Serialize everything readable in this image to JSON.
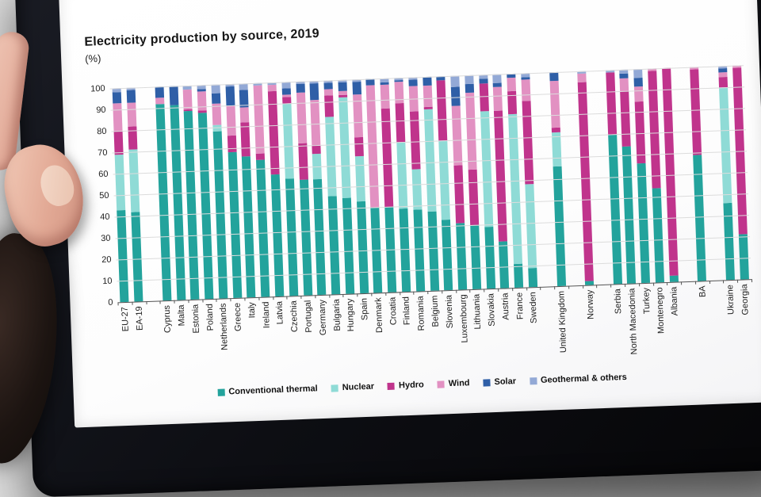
{
  "chart_data": {
    "type": "bar",
    "stacked": true,
    "title": "Electricity production by source, 2019",
    "unit_label": "(%)",
    "xlabel": "",
    "ylabel": "",
    "ylim": [
      0,
      100
    ],
    "ytick_step": 10,
    "grid": true,
    "legend_position": "bottom",
    "series_meta": [
      {
        "name": "Conventional thermal",
        "color": "#23a39c"
      },
      {
        "name": "Nuclear",
        "color": "#8fdbd6"
      },
      {
        "name": "Hydro",
        "color": "#c0348c"
      },
      {
        "name": "Wind",
        "color": "#e291c2"
      },
      {
        "name": "Solar",
        "color": "#2f5fa7"
      },
      {
        "name": "Geothermal & others",
        "color": "#93a9d6"
      }
    ],
    "slots": [
      {
        "label": "EU-27",
        "values": [
          43,
          26,
          11,
          13,
          5,
          2
        ]
      },
      {
        "label": "EA-19",
        "values": [
          42,
          29,
          11,
          11,
          6,
          1
        ]
      },
      null,
      {
        "label": "Cyprus",
        "values": [
          92,
          0,
          0,
          3,
          5,
          0
        ]
      },
      {
        "label": "Malta",
        "values": [
          91,
          0,
          0,
          0,
          9,
          0
        ]
      },
      {
        "label": "Estonia",
        "values": [
          88,
          0,
          1,
          9,
          0,
          2
        ]
      },
      {
        "label": "Poland",
        "values": [
          87,
          0,
          1,
          9,
          1,
          2
        ]
      },
      {
        "label": "Netherlands",
        "values": [
          78,
          3,
          0,
          10,
          5,
          4
        ]
      },
      {
        "label": "Greece",
        "values": [
          68,
          0,
          8,
          14,
          9,
          1
        ]
      },
      {
        "label": "Italy",
        "values": [
          66,
          0,
          16,
          7,
          8,
          3
        ]
      },
      {
        "label": "Ireland",
        "values": [
          64,
          0,
          3,
          32,
          0,
          1
        ]
      },
      {
        "label": "Latvia",
        "values": [
          57,
          0,
          39,
          3,
          0,
          1
        ]
      },
      {
        "label": "Czechia",
        "values": [
          55,
          35,
          3,
          1,
          3,
          3
        ]
      },
      {
        "label": "Portugal",
        "values": [
          54,
          0,
          17,
          24,
          4,
          1
        ]
      },
      {
        "label": "Germany",
        "values": [
          54,
          12,
          4,
          21,
          8,
          1
        ]
      },
      {
        "label": "Bulgaria",
        "values": [
          46,
          37,
          10,
          3,
          3,
          1
        ]
      },
      {
        "label": "Hungary",
        "values": [
          45,
          47,
          1,
          2,
          4,
          1
        ]
      },
      {
        "label": "Spain",
        "values": [
          43,
          21,
          9,
          20,
          6,
          1
        ]
      },
      {
        "label": "Denmark",
        "values": [
          40,
          0,
          0,
          57,
          3,
          0
        ]
      },
      {
        "label": "Croatia",
        "values": [
          40,
          0,
          46,
          11,
          1,
          2
        ]
      },
      {
        "label": "Finland",
        "values": [
          39,
          31,
          18,
          10,
          1,
          1
        ]
      },
      {
        "label": "Romania",
        "values": [
          38,
          19,
          27,
          12,
          3,
          1
        ]
      },
      {
        "label": "Belgium",
        "values": [
          37,
          48,
          1,
          10,
          4,
          0
        ]
      },
      {
        "label": "Slovenia",
        "values": [
          33,
          37,
          28,
          0,
          2,
          0
        ]
      },
      {
        "label": "Luxembourg",
        "values": [
          31,
          0,
          27,
          28,
          9,
          5
        ]
      },
      {
        "label": "Lithuania",
        "values": [
          30,
          0,
          26,
          36,
          4,
          4
        ]
      },
      {
        "label": "Slovakia",
        "values": [
          29,
          54,
          13,
          0,
          2,
          2
        ]
      },
      {
        "label": "Austria",
        "values": [
          22,
          0,
          61,
          11,
          2,
          4
        ]
      },
      {
        "label": "France",
        "values": [
          11,
          70,
          11,
          6,
          2,
          0
        ]
      },
      {
        "label": "Sweden",
        "values": [
          9,
          39,
          39,
          10,
          1,
          2
        ]
      },
      null,
      {
        "label": "United Kingdom",
        "values": [
          56,
          16,
          2,
          22,
          4,
          0
        ]
      },
      null,
      {
        "label": "Norway",
        "values": [
          2,
          0,
          93,
          4,
          0,
          1
        ]
      },
      null,
      {
        "label": "Serbia",
        "values": [
          70,
          0,
          29,
          0,
          0,
          1
        ]
      },
      {
        "label": "North Macedonia",
        "values": [
          64,
          0,
          26,
          6,
          2,
          2
        ]
      },
      {
        "label": "Turkey",
        "values": [
          56,
          0,
          29,
          7,
          4,
          4
        ]
      },
      {
        "label": "Montenegro",
        "values": [
          44,
          0,
          55,
          1,
          0,
          0
        ]
      },
      {
        "label": "Albania",
        "values": [
          3,
          0,
          97,
          0,
          0,
          0
        ]
      },
      null,
      {
        "label": "BA",
        "values": [
          59,
          0,
          40,
          1,
          0,
          0
        ]
      },
      null,
      {
        "label": "Ukraine",
        "values": [
          36,
          54,
          5,
          2,
          2,
          1
        ]
      },
      {
        "label": "Georgia",
        "values": [
          21,
          0,
          78,
          1,
          0,
          0
        ]
      }
    ]
  }
}
